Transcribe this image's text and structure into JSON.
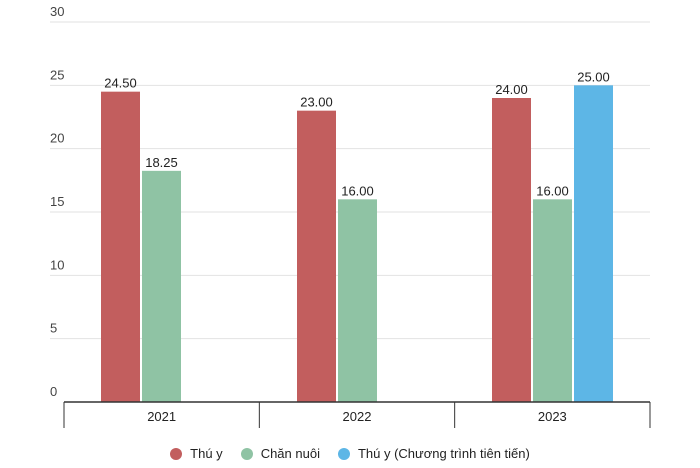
{
  "chart_data": {
    "type": "bar",
    "categories": [
      "2021",
      "2022",
      "2023"
    ],
    "series": [
      {
        "name": "Thú y",
        "color": "#C25E5E",
        "values": [
          24.5,
          23.0,
          24.0
        ],
        "labels": [
          "24.50",
          "23.00",
          "24.00"
        ]
      },
      {
        "name": "Chăn nuôi",
        "color": "#8FC3A4",
        "values": [
          18.25,
          16.0,
          16.0
        ],
        "labels": [
          "18.25",
          "16.00",
          "16.00"
        ]
      },
      {
        "name": "Thú y (Chương trình tiên tiến)",
        "color": "#5DB6E6",
        "values": [
          null,
          null,
          25.0
        ],
        "labels": [
          "",
          "",
          "25.00"
        ]
      }
    ],
    "y_ticks": [
      "0",
      "5",
      "10",
      "15",
      "20",
      "25",
      "30"
    ],
    "ylim": [
      0,
      30
    ],
    "grid": true,
    "legend_position": "bottom-center"
  }
}
